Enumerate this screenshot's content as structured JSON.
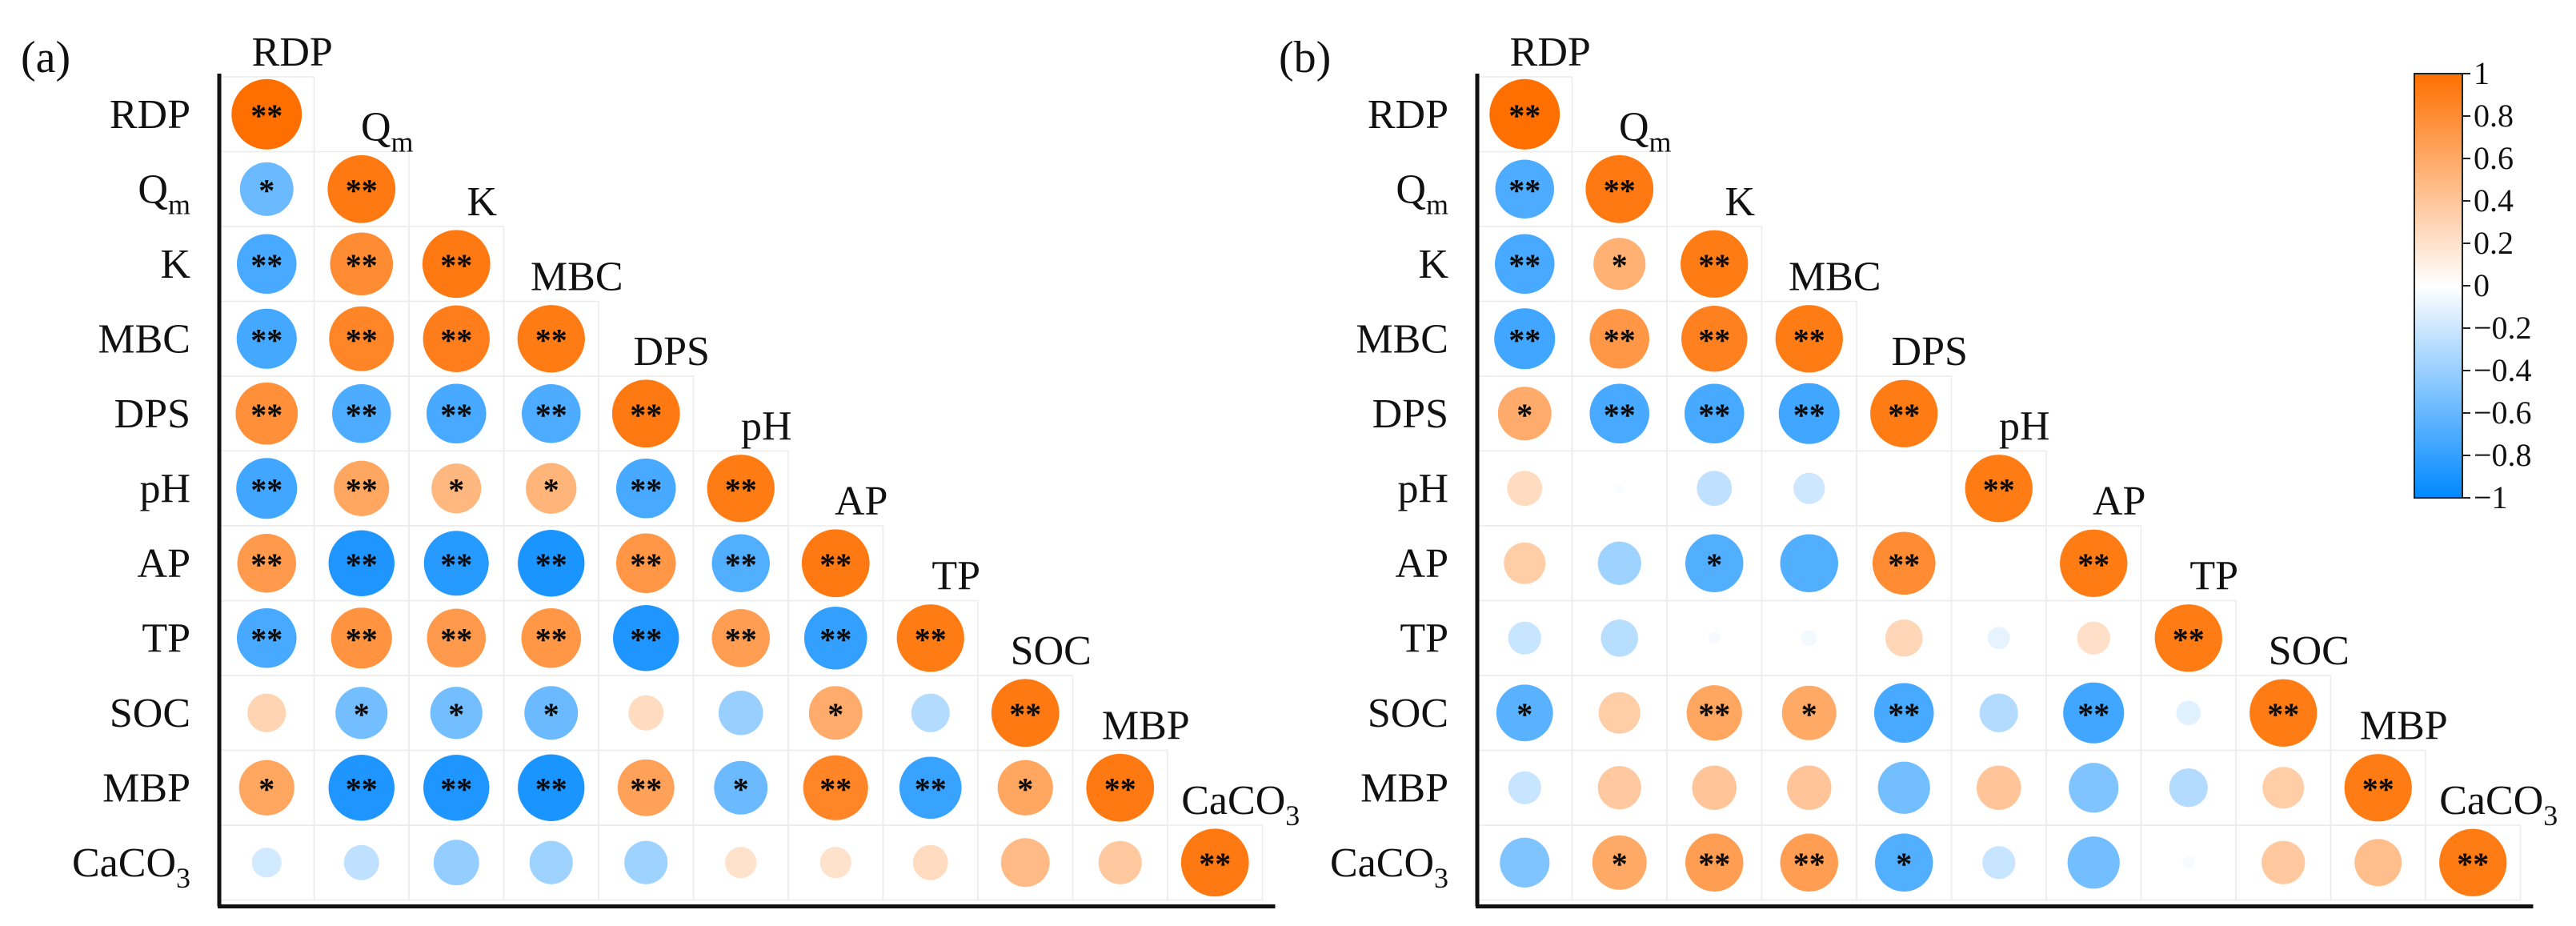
{
  "chart_data": [
    {
      "type": "heatmap",
      "panel_label": "(a)",
      "variables": [
        "RDP",
        "Q_m",
        "K",
        "MBC",
        "DPS",
        "pH",
        "AP",
        "TP",
        "SOC",
        "MBP",
        "CaCO_3"
      ],
      "value_range": [
        -1,
        1
      ],
      "correlations": [
        [
          1.0
        ],
        [
          -0.58,
          0.93
        ],
        [
          -0.72,
          0.8,
          0.93
        ],
        [
          -0.73,
          0.85,
          0.9,
          0.92
        ],
        [
          0.78,
          -0.7,
          -0.72,
          -0.7,
          0.93
        ],
        [
          -0.75,
          0.62,
          0.5,
          0.52,
          -0.72,
          0.92
        ],
        [
          0.7,
          -0.88,
          -0.85,
          -0.9,
          0.72,
          -0.68,
          0.93
        ],
        [
          -0.72,
          0.75,
          0.7,
          0.72,
          -0.88,
          0.68,
          -0.8,
          0.92
        ],
        [
          0.3,
          -0.55,
          -0.55,
          -0.58,
          0.25,
          -0.4,
          0.58,
          -0.3,
          0.93
        ],
        [
          0.62,
          -0.88,
          -0.88,
          -0.9,
          0.65,
          -0.58,
          0.85,
          -0.78,
          0.62,
          0.93
        ],
        [
          -0.18,
          -0.25,
          -0.42,
          -0.38,
          -0.38,
          0.2,
          0.2,
          0.25,
          0.48,
          0.38,
          0.93
        ]
      ],
      "significance": [
        [
          "**"
        ],
        [
          "*",
          "**"
        ],
        [
          "**",
          "**",
          "**"
        ],
        [
          "**",
          "**",
          "**",
          "**"
        ],
        [
          "**",
          "**",
          "**",
          "**",
          "**"
        ],
        [
          "**",
          "**",
          "*",
          "*",
          "**",
          "**"
        ],
        [
          "**",
          "**",
          "**",
          "**",
          "**",
          "**",
          "**"
        ],
        [
          "**",
          "**",
          "**",
          "**",
          "**",
          "**",
          "**",
          "**"
        ],
        [
          "",
          "*",
          "*",
          "*",
          "",
          "",
          "*",
          "",
          "**"
        ],
        [
          "*",
          "**",
          "**",
          "**",
          "**",
          "*",
          "**",
          "**",
          "*",
          "**"
        ],
        [
          "",
          "",
          "",
          "",
          "",
          "",
          "",
          "",
          "",
          "",
          "**"
        ]
      ]
    },
    {
      "type": "heatmap",
      "panel_label": "(b)",
      "variables": [
        "RDP",
        "Q_m",
        "K",
        "MBC",
        "DPS",
        "pH",
        "AP",
        "TP",
        "SOC",
        "MBP",
        "CaCO_3"
      ],
      "value_range": [
        -1,
        1
      ],
      "correlations": [
        [
          1.0
        ],
        [
          -0.7,
          0.93
        ],
        [
          -0.72,
          0.55,
          0.92
        ],
        [
          -0.75,
          0.72,
          0.88,
          0.92
        ],
        [
          0.58,
          -0.72,
          -0.72,
          -0.75,
          0.92
        ],
        [
          0.25,
          -0.02,
          -0.25,
          -0.2,
          0.0,
          0.92
        ],
        [
          0.35,
          -0.38,
          -0.68,
          -0.68,
          0.8,
          0.0,
          0.92
        ],
        [
          -0.22,
          -0.28,
          -0.03,
          -0.05,
          0.28,
          -0.1,
          0.22,
          0.92
        ],
        [
          -0.65,
          0.35,
          0.62,
          0.6,
          -0.72,
          -0.3,
          -0.75,
          -0.12,
          0.92
        ],
        [
          -0.22,
          0.38,
          0.4,
          0.4,
          -0.55,
          0.4,
          -0.5,
          -0.3,
          0.35,
          0.92
        ],
        [
          -0.5,
          0.6,
          0.68,
          0.68,
          -0.68,
          -0.22,
          -0.55,
          -0.03,
          0.38,
          0.45,
          0.92
        ]
      ],
      "significance": [
        [
          "**"
        ],
        [
          "**",
          "**"
        ],
        [
          "**",
          "*",
          "**"
        ],
        [
          "**",
          "**",
          "**",
          "**"
        ],
        [
          "*",
          "**",
          "**",
          "**",
          "**"
        ],
        [
          "",
          "",
          "",
          "",
          "",
          "**"
        ],
        [
          "",
          "",
          "*",
          "",
          "**",
          "",
          "**"
        ],
        [
          "",
          "",
          "",
          "",
          "",
          "",
          "",
          "**"
        ],
        [
          "*",
          "",
          "**",
          "*",
          "**",
          "",
          "**",
          "",
          "**"
        ],
        [
          "",
          "",
          "",
          "",
          "",
          "",
          "",
          "",
          "",
          "**"
        ],
        [
          "",
          "*",
          "**",
          "**",
          "*",
          "",
          "",
          "",
          "",
          "",
          "**"
        ]
      ]
    }
  ],
  "colorbar": {
    "ticks": [
      "1",
      "0.8",
      "0.6",
      "0.4",
      "0.2",
      "0",
      "−0.2",
      "−0.4",
      "−0.6",
      "−0.8",
      "−1"
    ],
    "colors": {
      "positive": "#ff6f00",
      "neutral": "#ffffff",
      "negative": "#0088ff"
    }
  }
}
